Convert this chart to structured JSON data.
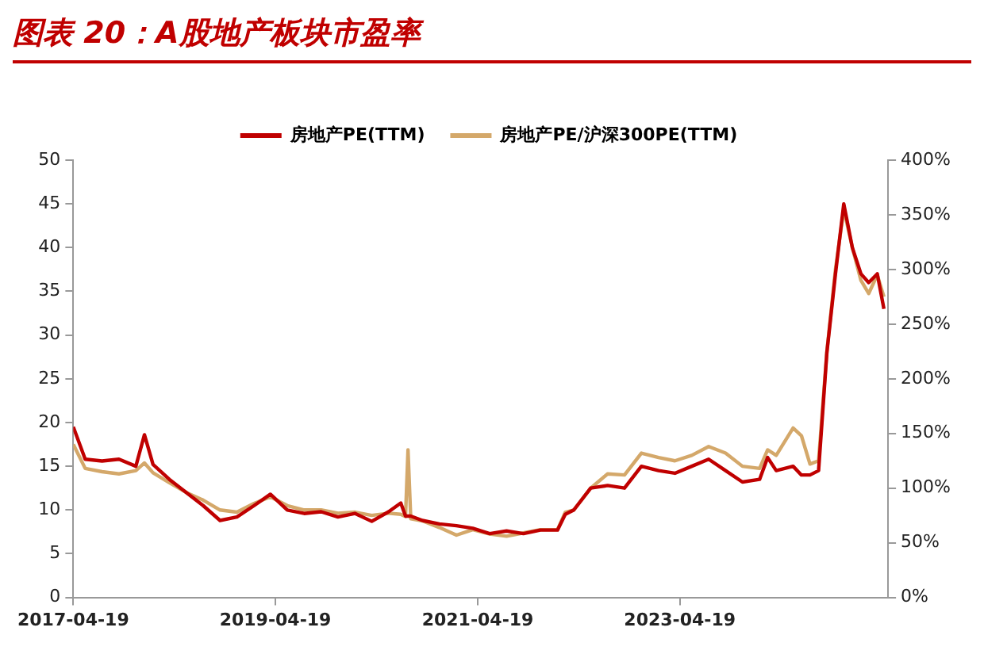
{
  "chart_data": {
    "type": "line",
    "title": "图表 20：A股地产板块市盈率",
    "x": [
      "2017-04-19",
      "2017-06-01",
      "2017-08-01",
      "2017-10-01",
      "2017-12-01",
      "2018-01-01",
      "2018-02-01",
      "2018-04-01",
      "2018-06-01",
      "2018-08-01",
      "2018-10-01",
      "2018-12-01",
      "2019-02-01",
      "2019-04-01",
      "2019-06-01",
      "2019-08-01",
      "2019-10-01",
      "2019-12-01",
      "2020-02-01",
      "2020-04-01",
      "2020-06-01",
      "2020-07-15",
      "2020-08-01",
      "2020-08-10",
      "2020-08-20",
      "2020-10-01",
      "2020-12-01",
      "2021-02-01",
      "2021-04-01",
      "2021-06-01",
      "2021-08-01",
      "2021-10-01",
      "2021-12-01",
      "2022-02-01",
      "2022-03-01",
      "2022-04-01",
      "2022-06-01",
      "2022-08-01",
      "2022-10-01",
      "2022-12-01",
      "2023-02-01",
      "2023-04-01",
      "2023-06-01",
      "2023-08-01",
      "2023-10-01",
      "2023-12-01",
      "2024-02-01",
      "2024-03-01",
      "2024-04-01",
      "2024-06-01",
      "2024-07-01",
      "2024-08-01",
      "2024-09-01",
      "2024-10-01",
      "2024-11-01",
      "2024-12-01",
      "2025-01-01",
      "2025-02-01",
      "2025-03-01",
      "2025-04-01",
      "2025-04-25"
    ],
    "series": [
      {
        "name": "房地产PE(TTM)",
        "color": "#c00000",
        "values": [
          19.5,
          15.8,
          15.6,
          15.8,
          15,
          18.6,
          15.2,
          13.5,
          12,
          10.5,
          8.8,
          9.2,
          10.5,
          11.8,
          10,
          9.6,
          9.8,
          9.2,
          9.6,
          8.7,
          9.8,
          10.8,
          9.3,
          9.3,
          9.3,
          8.8,
          8.4,
          8.2,
          7.9,
          7.3,
          7.6,
          7.3,
          7.7,
          7.7,
          9.5,
          10,
          12.5,
          12.8,
          12.5,
          15,
          14.5,
          14.2,
          15,
          15.8,
          14.5,
          13.2,
          13.5,
          16,
          14.5,
          15,
          14,
          14,
          14.5,
          28,
          37,
          45,
          40,
          37,
          36,
          37,
          33
        ]
      },
      {
        "name": "房地产PE/沪深300PE(TTM)",
        "color": "#d4a86a",
        "axis": "y2",
        "values": [
          140,
          118,
          115,
          113,
          116,
          123,
          114,
          105,
          96,
          89,
          80,
          78,
          86,
          92,
          84,
          80,
          80,
          77,
          78,
          75,
          77,
          76,
          74,
          135,
          72,
          70,
          64,
          57,
          62,
          58,
          56,
          59,
          62,
          62,
          78,
          80,
          100,
          113,
          112,
          132,
          128,
          125,
          130,
          138,
          132,
          120,
          118,
          135,
          130,
          155,
          148,
          122,
          125,
          225,
          300,
          355,
          320,
          290,
          278,
          295,
          275
        ]
      }
    ],
    "xlim": [
      "2017-04-19",
      "2025-05-10"
    ],
    "xticks": [
      "2017-04-19",
      "2019-04-19",
      "2021-04-19",
      "2023-04-19"
    ],
    "ylim": [
      0,
      50
    ],
    "yticks": [
      0,
      5,
      10,
      15,
      20,
      25,
      30,
      35,
      40,
      45,
      50
    ],
    "y2lim": [
      0,
      400
    ],
    "y2ticks": [
      {
        "value": 0,
        "label": "0%"
      },
      {
        "value": 50,
        "label": "50%"
      },
      {
        "value": 100,
        "label": "100%"
      },
      {
        "value": 150,
        "label": "150%"
      },
      {
        "value": 200,
        "label": "200%"
      },
      {
        "value": 250,
        "label": "250%"
      },
      {
        "value": 300,
        "label": "300%"
      },
      {
        "value": 350,
        "label": "350%"
      },
      {
        "value": 400,
        "label": "400%"
      }
    ],
    "grid": false,
    "legend": "top",
    "marker": "none",
    "line_style": "solid"
  }
}
